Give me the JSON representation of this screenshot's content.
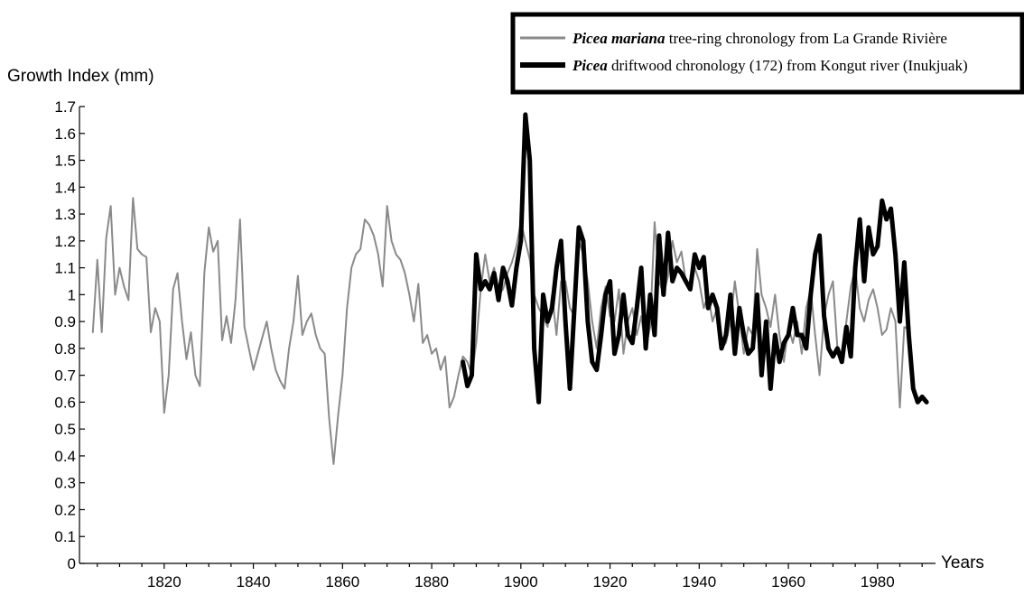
{
  "chart_data": {
    "type": "line",
    "title": "",
    "ylabel": "Growth Index (mm)",
    "xlabel": "Years",
    "ylim": [
      0,
      1.7
    ],
    "xlim": [
      1801,
      1993
    ],
    "yticks": [
      0,
      0.1,
      0.2,
      0.3,
      0.4,
      0.5,
      0.6,
      0.7,
      0.8,
      0.9,
      1,
      1.1,
      1.2,
      1.3,
      1.4,
      1.5,
      1.6,
      1.7
    ],
    "ytick_labels": [
      "0",
      "0.1",
      "0.2",
      "0.3",
      "0.4",
      "0.5",
      "0.6",
      "0.7",
      "0.8",
      "0.9",
      "1",
      "1.1",
      "1.2",
      "1.3",
      "1.4",
      "1.5",
      "1.6",
      "1.7"
    ],
    "xticks": [
      1820,
      1840,
      1860,
      1880,
      1900,
      1920,
      1940,
      1960,
      1980
    ],
    "xtick_labels": [
      "1820",
      "1840",
      "1860",
      "1880",
      "1900",
      "1920",
      "1940",
      "1960",
      "1980"
    ],
    "grid": false,
    "legend_position": "top-right",
    "series": [
      {
        "name": "tree-ring chronology from La Grande Rivière",
        "name_italic": "Picea mariana",
        "color": "#8a8a8a",
        "x": [
          1804,
          1805,
          1806,
          1807,
          1808,
          1809,
          1810,
          1811,
          1812,
          1813,
          1814,
          1815,
          1816,
          1817,
          1818,
          1819,
          1820,
          1821,
          1822,
          1823,
          1824,
          1825,
          1826,
          1827,
          1828,
          1829,
          1830,
          1831,
          1832,
          1833,
          1834,
          1835,
          1836,
          1837,
          1838,
          1839,
          1840,
          1841,
          1842,
          1843,
          1844,
          1845,
          1846,
          1847,
          1848,
          1849,
          1850,
          1851,
          1852,
          1853,
          1854,
          1855,
          1856,
          1857,
          1858,
          1859,
          1860,
          1861,
          1862,
          1863,
          1864,
          1865,
          1866,
          1867,
          1868,
          1869,
          1870,
          1871,
          1872,
          1873,
          1874,
          1875,
          1876,
          1877,
          1878,
          1879,
          1880,
          1881,
          1882,
          1883,
          1884,
          1885,
          1886,
          1887,
          1888,
          1889,
          1890,
          1891,
          1892,
          1893,
          1894,
          1895,
          1896,
          1897,
          1898,
          1899,
          1900,
          1901,
          1902,
          1903,
          1904,
          1905,
          1906,
          1907,
          1908,
          1909,
          1910,
          1911,
          1912,
          1913,
          1914,
          1915,
          1916,
          1917,
          1918,
          1919,
          1920,
          1921,
          1922,
          1923,
          1924,
          1925,
          1926,
          1927,
          1928,
          1929,
          1930,
          1931,
          1932,
          1933,
          1934,
          1935,
          1936,
          1937,
          1938,
          1939,
          1940,
          1941,
          1942,
          1943,
          1944,
          1945,
          1946,
          1947,
          1948,
          1949,
          1950,
          1951,
          1952,
          1953,
          1954,
          1955,
          1956,
          1957,
          1958,
          1959,
          1960,
          1961,
          1962,
          1963,
          1964,
          1965,
          1966,
          1967,
          1968,
          1969,
          1970,
          1971,
          1972,
          1973,
          1974,
          1975,
          1976,
          1977,
          1978,
          1979,
          1980,
          1981,
          1982,
          1983,
          1984,
          1985,
          1986,
          1987
        ],
        "y": [
          0.86,
          1.13,
          0.86,
          1.21,
          1.33,
          1.0,
          1.1,
          1.03,
          0.98,
          1.36,
          1.17,
          1.15,
          1.14,
          0.86,
          0.95,
          0.9,
          0.56,
          0.7,
          1.02,
          1.08,
          0.9,
          0.76,
          0.86,
          0.7,
          0.66,
          1.08,
          1.25,
          1.16,
          1.2,
          0.83,
          0.92,
          0.82,
          0.98,
          1.28,
          0.88,
          0.8,
          0.72,
          0.78,
          0.84,
          0.9,
          0.8,
          0.72,
          0.68,
          0.65,
          0.8,
          0.9,
          1.07,
          0.85,
          0.9,
          0.93,
          0.85,
          0.8,
          0.78,
          0.54,
          0.37,
          0.55,
          0.7,
          0.95,
          1.1,
          1.15,
          1.17,
          1.28,
          1.26,
          1.22,
          1.15,
          1.03,
          1.33,
          1.2,
          1.15,
          1.13,
          1.08,
          1.0,
          0.9,
          1.04,
          0.82,
          0.85,
          0.78,
          0.8,
          0.72,
          0.77,
          0.58,
          0.62,
          0.7,
          0.77,
          0.75,
          0.7,
          0.82,
          1.02,
          1.15,
          1.05,
          1.1,
          1.0,
          1.02,
          1.08,
          1.12,
          1.18,
          1.27,
          1.2,
          1.13,
          1.0,
          0.95,
          0.92,
          0.88,
          1.0,
          0.85,
          1.05,
          1.05,
          0.95,
          0.92,
          1.2,
          1.15,
          1.05,
          0.9,
          0.8,
          0.95,
          1.03,
          0.92,
          0.9,
          1.02,
          0.78,
          0.9,
          0.95,
          0.85,
          0.92,
          0.8,
          0.88,
          1.27,
          1.05,
          1.0,
          1.07,
          1.2,
          1.12,
          1.16,
          1.05,
          1.02,
          1.1,
          1.05,
          0.95,
          1.0,
          0.9,
          0.95,
          0.8,
          0.82,
          0.9,
          1.05,
          0.92,
          0.78,
          0.88,
          0.85,
          1.17,
          1.0,
          0.95,
          0.88,
          1.0,
          0.85,
          0.75,
          0.88,
          0.82,
          0.9,
          0.78,
          0.95,
          1.02,
          0.85,
          0.7,
          0.92,
          1.0,
          1.05,
          0.8,
          0.75,
          0.9,
          1.03,
          1.1,
          0.95,
          0.9,
          0.98,
          1.02,
          0.95,
          0.85,
          0.87,
          0.95,
          0.9,
          0.58,
          0.88,
          0.87
        ]
      },
      {
        "name": "driftwood chronology (172) from Kongut river (Inukjuak)",
        "name_italic": "Picea",
        "color": "#000000",
        "x": [
          1887,
          1888,
          1889,
          1890,
          1891,
          1892,
          1893,
          1894,
          1895,
          1896,
          1897,
          1898,
          1899,
          1900,
          1901,
          1902,
          1903,
          1904,
          1905,
          1906,
          1907,
          1908,
          1909,
          1910,
          1911,
          1912,
          1913,
          1914,
          1915,
          1916,
          1917,
          1918,
          1919,
          1920,
          1921,
          1922,
          1923,
          1924,
          1925,
          1926,
          1927,
          1928,
          1929,
          1930,
          1931,
          1932,
          1933,
          1934,
          1935,
          1936,
          1937,
          1938,
          1939,
          1940,
          1941,
          1942,
          1943,
          1944,
          1945,
          1946,
          1947,
          1948,
          1949,
          1950,
          1951,
          1952,
          1953,
          1954,
          1955,
          1956,
          1957,
          1958,
          1959,
          1960,
          1961,
          1962,
          1963,
          1964,
          1965,
          1966,
          1967,
          1968,
          1969,
          1970,
          1971,
          1972,
          1973,
          1974,
          1975,
          1976,
          1977,
          1978,
          1979,
          1980,
          1981,
          1982,
          1983,
          1984,
          1985,
          1986,
          1987,
          1988,
          1989,
          1990,
          1991
        ],
        "y": [
          0.75,
          0.66,
          0.7,
          1.15,
          1.02,
          1.05,
          1.02,
          1.08,
          0.98,
          1.1,
          1.05,
          0.96,
          1.1,
          1.2,
          1.67,
          1.5,
          0.8,
          0.6,
          1.0,
          0.9,
          0.95,
          1.1,
          1.2,
          0.9,
          0.65,
          0.95,
          1.25,
          1.2,
          0.9,
          0.75,
          0.72,
          0.85,
          1.0,
          1.05,
          0.78,
          0.85,
          1.0,
          0.85,
          0.82,
          0.95,
          1.1,
          0.8,
          1.0,
          0.85,
          1.22,
          1.0,
          1.23,
          1.05,
          1.1,
          1.08,
          1.05,
          1.02,
          1.15,
          1.1,
          1.14,
          0.95,
          1.0,
          0.95,
          0.8,
          0.85,
          1.0,
          0.78,
          0.95,
          0.85,
          0.78,
          0.8,
          1.0,
          0.7,
          0.9,
          0.65,
          0.85,
          0.75,
          0.82,
          0.85,
          0.95,
          0.85,
          0.85,
          0.8,
          1.0,
          1.15,
          1.22,
          0.92,
          0.8,
          0.77,
          0.8,
          0.75,
          0.88,
          0.77,
          1.1,
          1.28,
          1.05,
          1.25,
          1.15,
          1.18,
          1.35,
          1.28,
          1.32,
          1.15,
          0.9,
          1.12,
          0.85,
          0.65,
          0.6,
          0.62,
          0.6
        ]
      }
    ]
  }
}
